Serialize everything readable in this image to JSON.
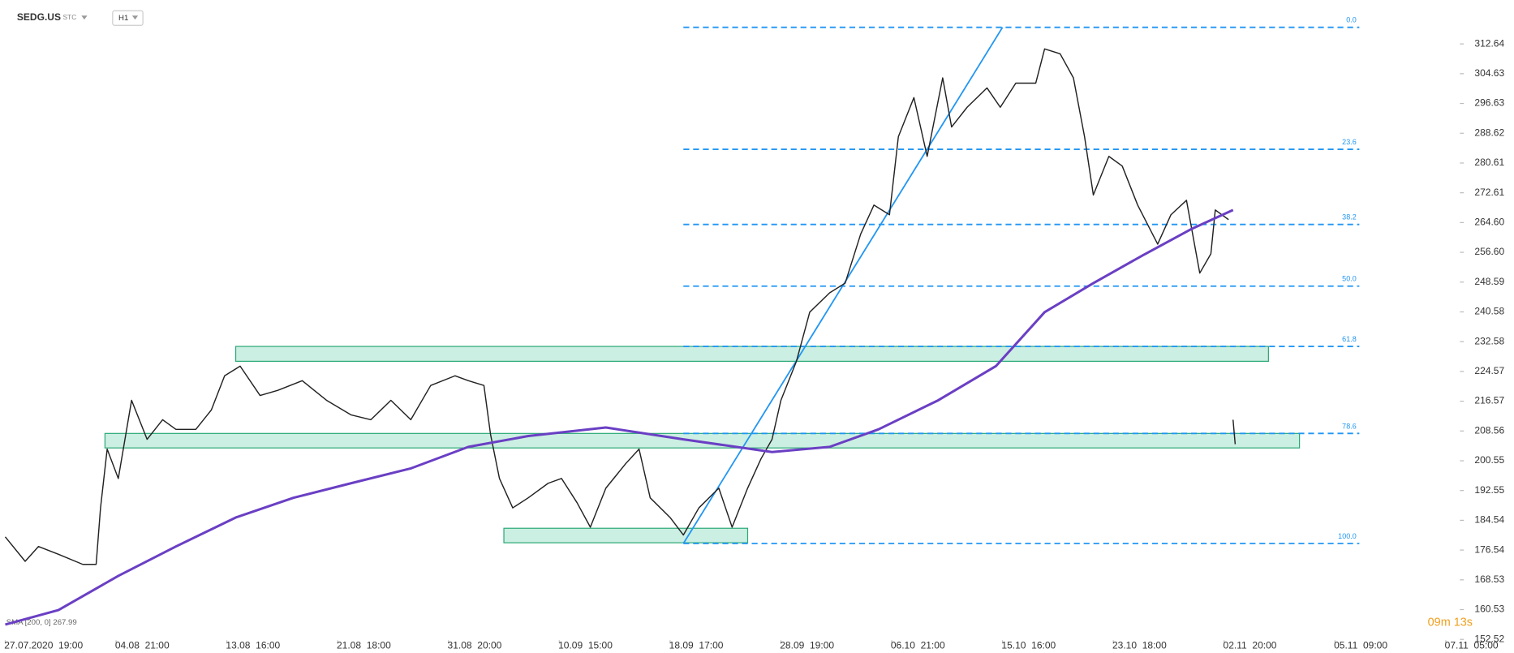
{
  "chart_data": {
    "type": "line",
    "title": "SEDG.US",
    "source": "STC",
    "interval": "H1",
    "indicator_label": "SMA [200, 0] 267.99",
    "timer": "09m 13s",
    "xlim": [
      -2.2,
      656.4
    ],
    "ylim": [
      152.27,
      324.45
    ],
    "xticks": [
      {
        "value": 0,
        "label": "27.07.2020  19:00"
      },
      {
        "value": 50,
        "label": "04.08  21:00"
      },
      {
        "value": 100,
        "label": "13.08  16:00"
      },
      {
        "value": 150,
        "label": "21.08  18:00"
      },
      {
        "value": 200,
        "label": "31.08  20:00"
      },
      {
        "value": 250,
        "label": "10.09  15:00"
      },
      {
        "value": 300,
        "label": "18.09  17:00"
      },
      {
        "value": 350,
        "label": "28.09  19:00"
      },
      {
        "value": 400,
        "label": "06.10  21:00"
      },
      {
        "value": 450,
        "label": "15.10  16:00"
      },
      {
        "value": 500,
        "label": "23.10  18:00"
      },
      {
        "value": 550,
        "label": "02.11  20:00"
      },
      {
        "value": 600,
        "label": "05.11  09:00"
      },
      {
        "value": 650,
        "label": "07.11  05:00"
      }
    ],
    "yticks": [
      312.64,
      304.63,
      296.63,
      288.62,
      280.61,
      272.61,
      {
        "value": 264.6,
        "label": "264.60"
      },
      {
        "value": 256.6,
        "label": "256.60"
      },
      248.59,
      240.58,
      232.58,
      224.57,
      216.57,
      208.56,
      200.55,
      192.55,
      184.54,
      176.54,
      168.53,
      160.53,
      152.52
    ],
    "series": [
      {
        "name": "SEDG.US",
        "color": "#222222",
        "x": [
          0,
          9,
          15,
          24,
          35,
          41,
          43,
          46,
          51,
          57,
          64,
          71,
          77,
          86,
          93,
          99,
          106,
          115,
          123,
          134,
          145,
          156,
          165,
          174,
          183,
          192,
          203,
          209,
          216,
          219,
          223,
          229,
          236,
          245,
          251,
          258,
          264,
          271,
          280,
          286,
          291,
          300,
          306,
          313,
          322,
          328,
          335,
          341,
          346,
          350,
          357,
          363,
          372,
          379,
          386,
          392,
          399,
          403,
          410,
          416,
          423,
          427,
          434,
          443,
          449,
          456,
          465,
          469,
          476,
          482,
          487,
          491,
          498,
          504,
          511,
          520,
          526,
          533,
          539,
          544,
          546,
          552,
          553,
          554,
          555
        ],
        "values": [
          180.1,
          173.5,
          177.5,
          175.4,
          172.7,
          172.7,
          187.9,
          203.7,
          195.8,
          216.8,
          206.3,
          211.6,
          209.0,
          209.0,
          214.2,
          223.4,
          226.0,
          218.1,
          219.5,
          222.1,
          216.8,
          212.9,
          211.6,
          216.8,
          211.6,
          220.8,
          223.4,
          222.1,
          220.8,
          207.6,
          195.8,
          187.9,
          190.6,
          194.5,
          195.8,
          189.3,
          182.7,
          193.2,
          199.8,
          203.7,
          190.6,
          185.3,
          180.6,
          187.9,
          193.2,
          182.7,
          193.2,
          201.1,
          206.3,
          216.8,
          227.3,
          240.5,
          245.7,
          248.3,
          261.5,
          269.3,
          266.7,
          287.7,
          298.2,
          282.4,
          303.5,
          290.3,
          295.6,
          300.8,
          295.6,
          302.1,
          302.1,
          311.3,
          310.0,
          303.5,
          287.7,
          272.0,
          282.4,
          279.8,
          269.3,
          258.8,
          266.7,
          270.6,
          251.0,
          256.2,
          268.0,
          265.4,
          null,
          211.6,
          205.0
        ]
      },
      {
        "name": "SMA",
        "color": "#6a3fc4",
        "x": [
          0,
          24,
          51,
          77,
          104,
          130,
          156,
          183,
          209,
          236,
          271,
          306,
          346,
          372,
          394,
          421,
          447,
          469,
          491,
          513,
          535,
          554
        ],
        "values": [
          156.5,
          160.4,
          169.6,
          177.5,
          185.3,
          190.6,
          194.5,
          198.5,
          204.3,
          207.2,
          209.5,
          206.3,
          202.9,
          204.3,
          209.0,
          216.8,
          226.0,
          240.5,
          248.3,
          255.7,
          262.8,
          268.0
        ]
      }
    ],
    "fib_x": [
      306,
      611
    ],
    "fib_levels": [
      {
        "label": "0.0",
        "value": 317.1
      },
      {
        "label": "23.6",
        "value": 284.3
      },
      {
        "label": "38.2",
        "value": 264.1
      },
      {
        "label": "50.0",
        "value": 247.5
      },
      {
        "label": "61.8",
        "value": 231.3
      },
      {
        "label": "78.6",
        "value": 207.9
      },
      {
        "label": "100.0",
        "value": 178.3
      }
    ],
    "trend_line": {
      "x": [
        306,
        450
      ],
      "values": [
        178.3,
        317.1
      ]
    },
    "zones": [
      {
        "x": [
          104,
          570
        ],
        "values": [
          227.3,
          231.3
        ]
      },
      {
        "x": [
          45,
          584
        ],
        "values": [
          204.0,
          207.9
        ]
      },
      {
        "x": [
          225,
          335
        ],
        "values": [
          178.5,
          182.4
        ]
      }
    ]
  }
}
